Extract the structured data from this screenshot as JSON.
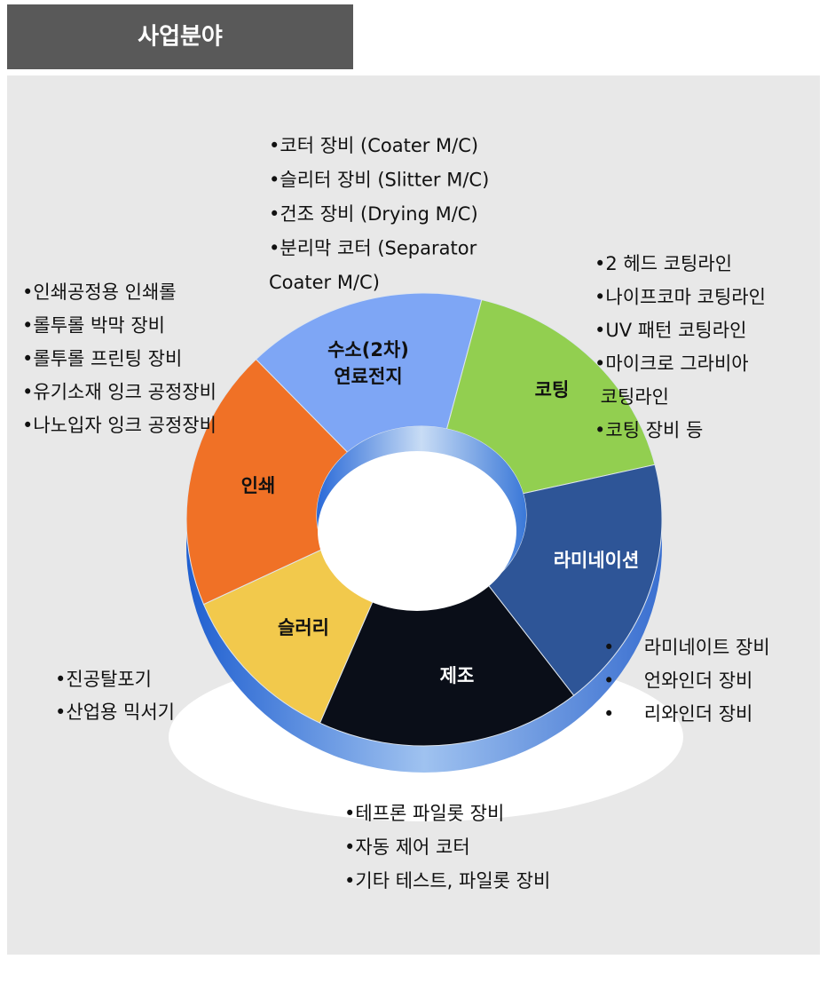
{
  "header": {
    "title": "사업분야"
  },
  "nodes": [
    {
      "label": [
        "수소(2차)",
        "연료전지"
      ],
      "color": "#7ea6f5",
      "text_color": "#111111",
      "items": [
        "•코터 장비 (Coater M/C)",
        "•슬리터 장비 (Slitter M/C)",
        "•건조 장비 (Drying M/C)",
        "•분리막 코터 (Separator",
        "Coater M/C)"
      ]
    },
    {
      "label": [
        "코팅"
      ],
      "color": "#92cf50",
      "text_color": "#111111",
      "items": [
        "•2 헤드 코팅라인",
        "•나이프코마 코팅라인",
        "•UV 패턴 코팅라인",
        "•마이크로 그라비아",
        " 코팅라인",
        "•코팅 장비 등"
      ]
    },
    {
      "label": [
        "라미네이션"
      ],
      "color": "#2e5597",
      "text_color": "#ffffff",
      "items": [
        "•     라미네이트 장비",
        "•     언와인더 장비",
        "•     리와인더 장비"
      ]
    },
    {
      "label": [
        "제조"
      ],
      "color": "#0a0e18",
      "text_color": "#ffffff",
      "items": [
        "•테프론 파일롯 장비",
        "•자동 제어 코터",
        "•기타 테스트, 파일롯 장비"
      ]
    },
    {
      "label": [
        "슬러리"
      ],
      "color": "#f2c94c",
      "text_color": "#111111",
      "items": [
        "•진공탈포기",
        "•산업용 믹서기"
      ]
    },
    {
      "label": [
        "인쇄"
      ],
      "color": "#f07126",
      "text_color": "#111111",
      "items": [
        "•인쇄공정용 인쇄롤",
        "•롤투롤 박막 장비",
        "•롤투롤 프린팅 장비",
        "•유기소재 잉크 공정장비",
        "•나노입자 잉크 공정장비"
      ]
    }
  ]
}
